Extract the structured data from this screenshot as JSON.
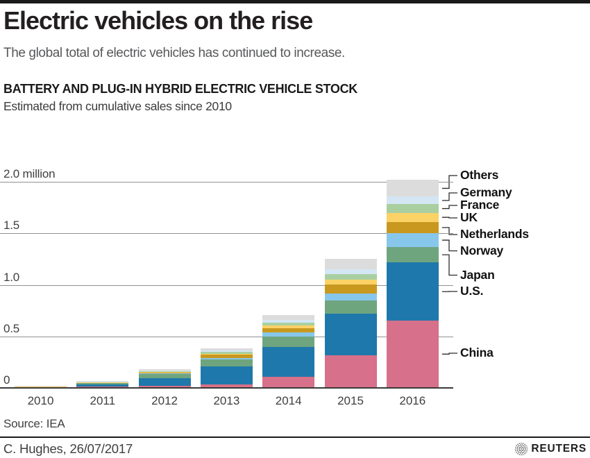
{
  "page": {
    "title": "Electric vehicles on the rise",
    "subtitle": "The global total of electric vehicles has continued to increase.",
    "section_title": "BATTERY AND PLUG-IN HYBRID ELECTRIC VEHICLE STOCK",
    "section_subtitle": "Estimated from cumulative sales since 2010",
    "source": "Source: IEA",
    "byline": "C. Hughes,  26/07/2017",
    "brand": "REUTERS",
    "accent_bar_color": "#1a1a1a"
  },
  "chart_data": {
    "type": "bar",
    "stacked": true,
    "title": "BATTERY AND PLUG-IN HYBRID ELECTRIC VEHICLE STOCK",
    "subtitle": "Estimated from cumulative sales since 2010",
    "unit": "million vehicles",
    "categories": [
      "2010",
      "2011",
      "2012",
      "2013",
      "2014",
      "2015",
      "2016"
    ],
    "y_axis": {
      "min": 0,
      "max": 2.0,
      "grid": true,
      "ticks": [
        {
          "value": 2.0,
          "label": "2.0 million"
        },
        {
          "value": 1.5,
          "label": "1.5"
        },
        {
          "value": 1.0,
          "label": "1.0"
        },
        {
          "value": 0.5,
          "label": "0.5"
        },
        {
          "value": 0,
          "label": "0"
        }
      ]
    },
    "legend_position": "right",
    "series": [
      {
        "name": "China",
        "color": "#d7708a",
        "values": [
          0.002,
          0.007,
          0.017,
          0.032,
          0.105,
          0.313,
          0.649
        ]
      },
      {
        "name": "U.S.",
        "color": "#1f78ab",
        "values": [
          0.004,
          0.022,
          0.075,
          0.171,
          0.29,
          0.404,
          0.564
        ]
      },
      {
        "name": "Japan",
        "color": "#6fa57e",
        "values": [
          0.004,
          0.016,
          0.041,
          0.069,
          0.102,
          0.126,
          0.151
        ]
      },
      {
        "name": "Norway",
        "color": "#87c7ec",
        "values": [
          0.001,
          0.003,
          0.007,
          0.016,
          0.035,
          0.069,
          0.133
        ]
      },
      {
        "name": "Netherlands",
        "color": "#c9991f",
        "values": [
          0.0,
          0.001,
          0.006,
          0.029,
          0.044,
          0.088,
          0.112
        ]
      },
      {
        "name": "UK",
        "color": "#fbd266",
        "values": [
          0.002,
          0.003,
          0.006,
          0.009,
          0.024,
          0.049,
          0.086
        ]
      },
      {
        "name": "France",
        "color": "#a9cfa1",
        "values": [
          0.0,
          0.003,
          0.009,
          0.019,
          0.032,
          0.054,
          0.084
        ]
      },
      {
        "name": "Germany",
        "color": "#d4e6f4",
        "values": [
          0.0,
          0.002,
          0.005,
          0.012,
          0.025,
          0.048,
          0.073
        ]
      },
      {
        "name": "Others",
        "color": "#dcdcdc",
        "values": [
          0.002,
          0.008,
          0.014,
          0.025,
          0.044,
          0.095,
          0.162
        ]
      }
    ]
  }
}
